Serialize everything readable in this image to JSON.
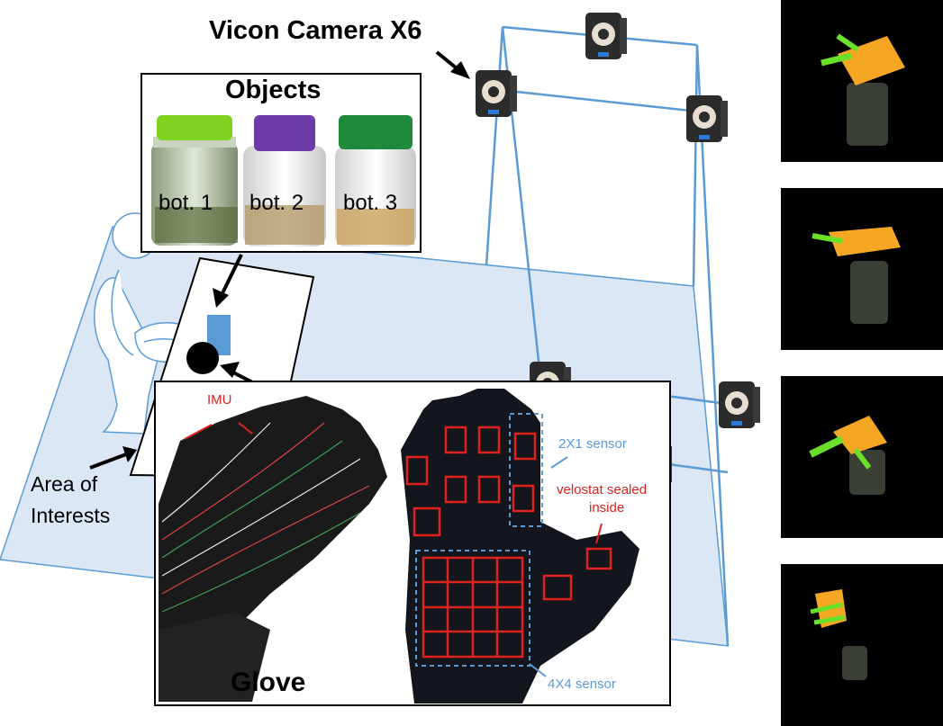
{
  "labels": {
    "camera": "Vicon Camera X6",
    "objects_title": "Objects",
    "bot1": "bot. 1",
    "bot2": "bot. 2",
    "bot3": "bot. 3",
    "area_line1": "Area of",
    "area_line2": "Interests",
    "glove": "Glove",
    "imu": "IMU",
    "sensor_2x1": "2X1 sensor",
    "velostat_line1": "velostat sealed",
    "velostat_line2": "inside",
    "sensor_4x4": "4X4 sensor"
  },
  "colors": {
    "floor": "#dce7f5",
    "frame": "#5b9bd5",
    "red_annotation": "#e0221f",
    "blue_annotation": "#5b9bd5",
    "pad_blue": "#5b9bd5",
    "bottle1_cap": "#7ed321",
    "bottle2_cap": "#6a3aa8",
    "bottle3_cap": "#1e8a3c",
    "hand_orange": "#f5a623",
    "hand_green": "#6be02a"
  },
  "icons": [
    "camera-icon",
    "arrow-icon",
    "chair-icon",
    "bottle-icon",
    "glove-icon",
    "hand-model-icon"
  ]
}
